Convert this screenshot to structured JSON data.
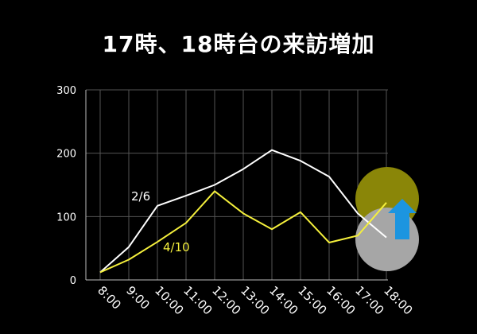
{
  "chart_data": {
    "type": "line",
    "title": "17時、18時台の来訪増加",
    "categories": [
      "8:00",
      "9:00",
      "10:00",
      "11:00",
      "12:00",
      "13:00",
      "14:00",
      "15:00",
      "16:00",
      "17:00",
      "18:00"
    ],
    "ylim": [
      0,
      300
    ],
    "yticks": [
      "0",
      "100",
      "200",
      "300"
    ],
    "grid": true,
    "series": [
      {
        "name": "2/6",
        "color": "#ffffff",
        "values": [
          12,
          52,
          117,
          133,
          150,
          175,
          205,
          188,
          163,
          105,
          67
        ]
      },
      {
        "name": "4/10",
        "color": "#f5f03c",
        "values": [
          12,
          32,
          60,
          90,
          140,
          105,
          80,
          107,
          59,
          70,
          122
        ]
      }
    ],
    "annotation": {
      "circle_top_color": "#8a8608",
      "circle_bottom_color": "#a6a6a6",
      "arrow_color": "#1c95e0",
      "arrow_direction": "up"
    }
  }
}
